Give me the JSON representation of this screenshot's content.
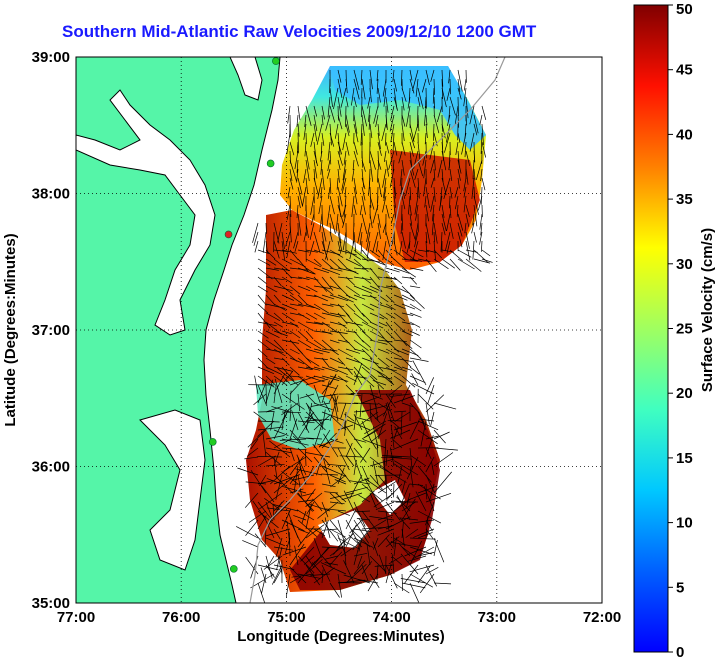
{
  "title": "Southern Mid-Atlantic Raw Velocities 2009/12/10 1200 GMT",
  "x_axis": {
    "label": "Longitude (Degrees:Minutes)",
    "ticks": [
      "77:00",
      "76:00",
      "75:00",
      "74:00",
      "73:00",
      "72:00"
    ],
    "range": [
      -77,
      -72
    ]
  },
  "y_axis": {
    "label": "Latitude (Degrees:Minutes)",
    "ticks": [
      "35:00",
      "36:00",
      "37:00",
      "38:00",
      "39:00"
    ],
    "range": [
      35,
      39
    ]
  },
  "colorbar": {
    "label": "Surface Velocity (cm/s)",
    "ticks": [
      "0",
      "5",
      "10",
      "15",
      "20",
      "25",
      "30",
      "35",
      "40",
      "45",
      "50"
    ],
    "range": [
      0,
      50
    ],
    "colormap": "jet"
  },
  "colors": {
    "land": "#55f5a8",
    "title": "#1a1aff",
    "station_green": "#22cc22",
    "station_red": "#dd2222"
  },
  "stations": [
    {
      "lon": -75.1,
      "lat": 38.97,
      "status": "green"
    },
    {
      "lon": -75.15,
      "lat": 38.22,
      "status": "green"
    },
    {
      "lon": -75.55,
      "lat": 37.7,
      "status": "red"
    },
    {
      "lon": -75.7,
      "lat": 36.18,
      "status": "green"
    },
    {
      "lon": -75.5,
      "lat": 35.25,
      "status": "green"
    }
  ]
}
